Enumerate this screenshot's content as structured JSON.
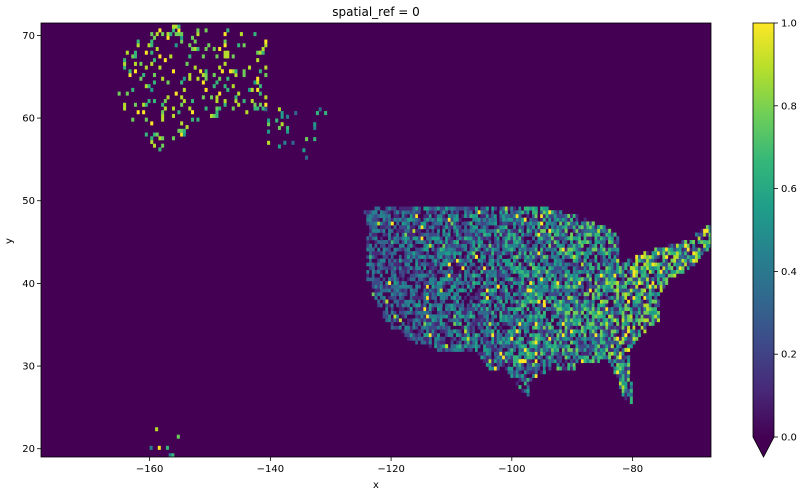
{
  "chart_data": {
    "type": "heatmap",
    "title": "spatial_ref = 0",
    "xlabel": "x",
    "ylabel": "y",
    "xlim": [
      -178,
      -67
    ],
    "ylim": [
      19,
      71.5
    ],
    "xticks": [
      -160,
      -140,
      -120,
      -100,
      -80
    ],
    "xtick_labels": [
      "−160",
      "−140",
      "−120",
      "−100",
      "−80"
    ],
    "yticks": [
      20,
      30,
      40,
      50,
      60,
      70
    ],
    "ytick_labels": [
      "20",
      "30",
      "40",
      "50",
      "60",
      "70"
    ],
    "colorbar": {
      "colormap": "viridis",
      "range": [
        0.0,
        1.0
      ],
      "ticks": [
        0.0,
        0.2,
        0.4,
        0.6,
        0.8,
        1.0
      ],
      "tick_labels": [
        "0.0",
        "0.2",
        "0.4",
        "0.6",
        "0.8",
        "1.0"
      ],
      "extend": "min"
    },
    "grid": false,
    "background_value": 0.0,
    "regions": [
      {
        "name": "Alaska mainland",
        "lon": [
          -168,
          -141
        ],
        "lat": [
          56,
          71
        ],
        "density": 0.14,
        "value_range": [
          0.6,
          1.0
        ]
      },
      {
        "name": "Alaska southeast",
        "lon": [
          -141,
          -130
        ],
        "lat": [
          55,
          61
        ],
        "density": 0.08,
        "value_range": [
          0.3,
          0.9
        ]
      },
      {
        "name": "Hawaii",
        "lon": [
          -160,
          -154.8
        ],
        "lat": [
          19,
          22.3
        ],
        "density": 0.08,
        "value_range": [
          0.4,
          1.0
        ]
      },
      {
        "name": "Contiguous United States",
        "lon": [
          -125,
          -67
        ],
        "lat": [
          25,
          49
        ],
        "density": 0.9,
        "value_range": [
          0.0,
          1.0
        ]
      }
    ]
  },
  "colors": {
    "viridis": [
      "#440154",
      "#482878",
      "#3e4989",
      "#31688e",
      "#26828e",
      "#1f9e89",
      "#35b779",
      "#6ece58",
      "#b5de2b",
      "#fde725"
    ],
    "background": "#440154",
    "text": "#000000",
    "axis_line": "#000000"
  }
}
